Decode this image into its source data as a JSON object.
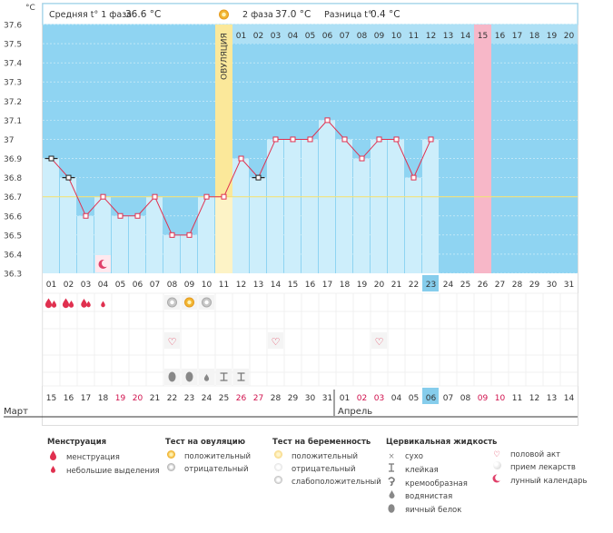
{
  "chart_data": {
    "type": "line",
    "title": "",
    "ylabel": "°C",
    "ylim": [
      36.3,
      37.6
    ],
    "yticks": [
      "37.6",
      "37.5",
      "37.4",
      "37.3",
      "37.2",
      "37.1",
      "37",
      "36.9",
      "36.8",
      "36.7",
      "36.6",
      "36.5",
      "36.4",
      "36.3"
    ],
    "header": {
      "phase1_label": "Средняя t° 1 фаза",
      "phase1_value": "36.6 °C",
      "phase2_label": "2 фаза",
      "phase2_value": "37.0 °C",
      "diff_label": "Разница t°",
      "diff_value": "0.4 °C"
    },
    "cycle_days": [
      "01",
      "02",
      "03",
      "04",
      "05",
      "06",
      "07",
      "08",
      "09",
      "10",
      "11",
      "12",
      "13",
      "14",
      "15",
      "16",
      "17",
      "18",
      "19",
      "20",
      "21",
      "22",
      "23",
      "24",
      "25",
      "26",
      "27",
      "28",
      "29",
      "30",
      "31"
    ],
    "luteal_days": [
      "01",
      "02",
      "03",
      "04",
      "05",
      "06",
      "07",
      "08",
      "09",
      "10",
      "11",
      "12",
      "13",
      "14",
      "15",
      "16",
      "17",
      "18",
      "19",
      "20"
    ],
    "ovulation_label": "ОВУЛЯЦИЯ",
    "ovulation_day_index": 10,
    "expected_period_luteal_day": "15",
    "today_cycle_day": "23",
    "today_calendar_day": "06",
    "temperatures": [
      36.9,
      36.8,
      36.6,
      36.7,
      36.6,
      36.6,
      36.7,
      36.5,
      36.5,
      36.7,
      36.7,
      36.9,
      36.8,
      37.0,
      37.0,
      37.0,
      37.1,
      37.0,
      36.9,
      37.0,
      37.0,
      36.8,
      37.0
    ],
    "coverline": 36.7,
    "black_markers": [
      0,
      1,
      12
    ],
    "calendar_days": [
      "15",
      "16",
      "17",
      "18",
      "19",
      "20",
      "21",
      "22",
      "23",
      "24",
      "25",
      "26",
      "27",
      "28",
      "29",
      "30",
      "31",
      "01",
      "02",
      "03",
      "04",
      "05",
      "06",
      "07",
      "08",
      "09",
      "10",
      "11",
      "12",
      "13",
      "14"
    ],
    "weekend_indices": [
      4,
      5,
      11,
      12,
      18,
      19,
      25,
      26
    ],
    "month1": "Март",
    "month2": "Апрель",
    "month2_start_index": 17,
    "menstruation": [
      {
        "day_index": 0,
        "level": "heavy"
      },
      {
        "day_index": 1,
        "level": "heavy"
      },
      {
        "day_index": 2,
        "level": "medium"
      },
      {
        "day_index": 3,
        "level": "light"
      }
    ],
    "moon_day_index": 3,
    "ovulation_tests": [
      {
        "day_index": 7,
        "result": "negative"
      },
      {
        "day_index": 8,
        "result": "positive"
      },
      {
        "day_index": 9,
        "result": "negative"
      }
    ],
    "intercourse_days": [
      7,
      13,
      19
    ],
    "cervical_fluid": [
      {
        "day_index": 7,
        "type": "eggwhite"
      },
      {
        "day_index": 8,
        "type": "eggwhite"
      },
      {
        "day_index": 9,
        "type": "watery"
      },
      {
        "day_index": 10,
        "type": "sticky"
      },
      {
        "day_index": 11,
        "type": "sticky"
      }
    ]
  },
  "legend": {
    "menstruation": {
      "title": "Менструация",
      "items": [
        "менструация",
        "небольшие выделения"
      ]
    },
    "ovulation_test": {
      "title": "Тест на овуляцию",
      "items": [
        "положительный",
        "отрицательный"
      ]
    },
    "pregnancy_test": {
      "title": "Тест на беременность",
      "items": [
        "положительный",
        "отрицательный",
        "слабоположительный"
      ]
    },
    "cervical": {
      "title": "Цервикальная жидкость",
      "items": [
        "сухо",
        "клейкая",
        "кремообразная",
        "водянистая",
        "яичный белок"
      ]
    },
    "other": {
      "items": [
        "половой акт",
        "прием лекарств",
        "лунный календарь"
      ]
    }
  },
  "colors": {
    "plot_bg": "#8fd4f2",
    "bar": "#cdeefb",
    "ovulation": "#fbe89a",
    "period": "#f7b7c8",
    "today": "#86cdec",
    "line": "#e0304f",
    "weekend": "#d0104c",
    "coverline": "#f2e27a"
  }
}
